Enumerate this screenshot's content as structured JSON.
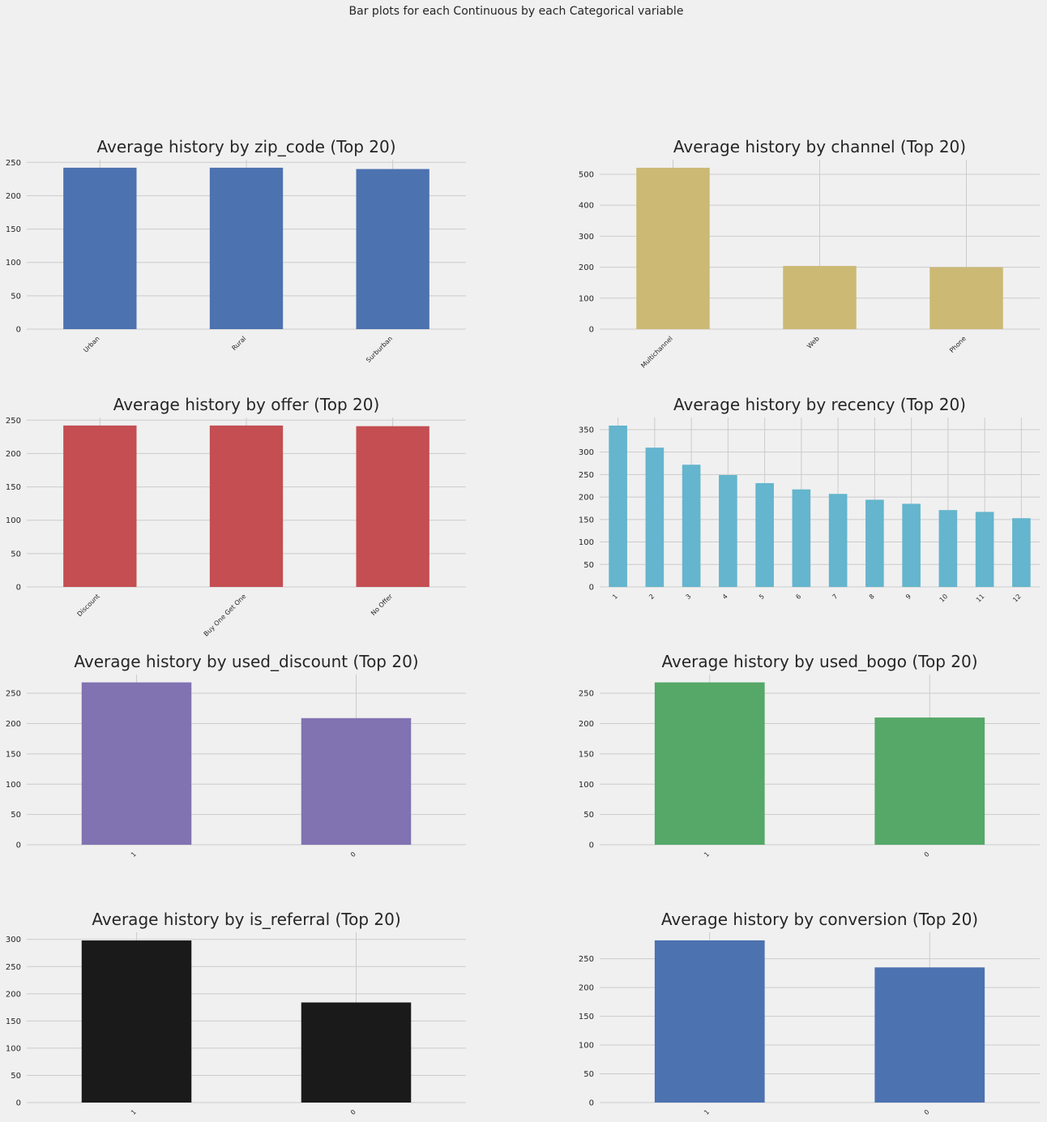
{
  "figure": {
    "suptitle": "Bar plots for each Continuous by each Categorical variable"
  },
  "chart_data": [
    {
      "type": "bar",
      "title": "Average history by zip_code (Top 20)",
      "categories": [
        "Urban",
        "Rural",
        "Surburban"
      ],
      "values": [
        242,
        242,
        240
      ],
      "yticks": [
        0,
        50,
        100,
        150,
        200,
        250
      ],
      "ylim": [
        0,
        254
      ],
      "color": "#4c72b0",
      "grid": true
    },
    {
      "type": "bar",
      "title": "Average history by channel (Top 20)",
      "categories": [
        "Multichannel",
        "Web",
        "Phone"
      ],
      "values": [
        521,
        204,
        200
      ],
      "yticks": [
        0,
        100,
        200,
        300,
        400,
        500
      ],
      "ylim": [
        0,
        547
      ],
      "color": "#ccb974",
      "grid": true
    },
    {
      "type": "bar",
      "title": "Average history by offer (Top 20)",
      "categories": [
        "Discount",
        "Buy One Get One",
        "No Offer"
      ],
      "values": [
        242,
        242,
        241
      ],
      "yticks": [
        0,
        50,
        100,
        150,
        200,
        250
      ],
      "ylim": [
        0,
        254
      ],
      "color": "#c44e52",
      "grid": true
    },
    {
      "type": "bar",
      "title": "Average history by recency (Top 20)",
      "categories": [
        "1",
        "2",
        "3",
        "4",
        "5",
        "6",
        "7",
        "8",
        "9",
        "10",
        "11",
        "12"
      ],
      "values": [
        359,
        310,
        272,
        249,
        231,
        217,
        207,
        194,
        185,
        171,
        167,
        153
      ],
      "yticks": [
        0,
        50,
        100,
        150,
        200,
        250,
        300,
        350
      ],
      "ylim": [
        0,
        377
      ],
      "color": "#64b5cd",
      "grid": true
    },
    {
      "type": "bar",
      "title": "Average history by used_discount (Top 20)",
      "categories": [
        "1",
        "0"
      ],
      "values": [
        268,
        209
      ],
      "yticks": [
        0,
        50,
        100,
        150,
        200,
        250
      ],
      "ylim": [
        0,
        281
      ],
      "color": "#8172b2",
      "grid": true
    },
    {
      "type": "bar",
      "title": "Average history by used_bogo (Top 20)",
      "categories": [
        "1",
        "0"
      ],
      "values": [
        268,
        210
      ],
      "yticks": [
        0,
        50,
        100,
        150,
        200,
        250
      ],
      "ylim": [
        0,
        281
      ],
      "color": "#55a868",
      "grid": true
    },
    {
      "type": "bar",
      "title": "Average history by is_referral (Top 20)",
      "categories": [
        "1",
        "0"
      ],
      "values": [
        298,
        184
      ],
      "yticks": [
        0,
        50,
        100,
        150,
        200,
        250,
        300
      ],
      "ylim": [
        0,
        313
      ],
      "color": "#1a1a1a",
      "grid": true
    },
    {
      "type": "bar",
      "title": "Average history by conversion (Top 20)",
      "categories": [
        "1",
        "0"
      ],
      "values": [
        282,
        235
      ],
      "yticks": [
        0,
        50,
        100,
        150,
        200,
        250
      ],
      "ylim": [
        0,
        296
      ],
      "color": "#4c72b0",
      "grid": true
    }
  ]
}
